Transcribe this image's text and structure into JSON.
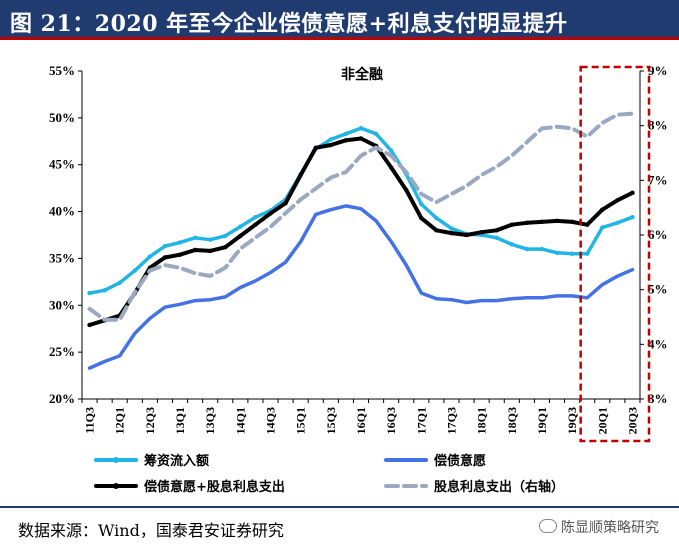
{
  "title": "图 21：2020 年至今企业偿债意愿+利息支付明显提升",
  "source": "数据来源：Wind，国泰君安证券研究",
  "watermark": "陈显顺策略研究",
  "colors": {
    "cyan": "#21b5e6",
    "blue": "#4472e6",
    "black": "#000000",
    "gray": "#9aa8c2",
    "box": "#c00000",
    "titlebar": "#1f3b6f"
  },
  "chart_data": {
    "type": "line",
    "title": "非全融",
    "categories": [
      "11Q3",
      "11Q4",
      "12Q1",
      "12Q2",
      "12Q3",
      "12Q4",
      "13Q1",
      "13Q2",
      "13Q3",
      "13Q4",
      "14Q1",
      "14Q2",
      "14Q3",
      "14Q4",
      "15Q1",
      "15Q2",
      "15Q3",
      "15Q4",
      "16Q1",
      "16Q2",
      "16Q3",
      "16Q4",
      "17Q1",
      "17Q2",
      "17Q3",
      "17Q4",
      "18Q1",
      "18Q2",
      "18Q3",
      "18Q4",
      "19Q1",
      "19Q2",
      "19Q3",
      "19Q4",
      "20Q1",
      "20Q2",
      "20Q3"
    ],
    "x_tick_labels": [
      "11Q3",
      "12Q1",
      "12Q3",
      "13Q1",
      "13Q3",
      "14Q1",
      "14Q3",
      "15Q1",
      "15Q3",
      "16Q1",
      "16Q3",
      "17Q1",
      "17Q3",
      "18Q1",
      "18Q3",
      "19Q1",
      "19Q3",
      "20Q1",
      "20Q3"
    ],
    "y_left": {
      "min": 20,
      "max": 55,
      "step": 5,
      "suffix": "%",
      "tick_labels": [
        "20%",
        "25%",
        "30%",
        "35%",
        "40%",
        "45%",
        "50%",
        "55%"
      ]
    },
    "y_right": {
      "min": 3,
      "max": 9,
      "step": 1,
      "suffix": "%",
      "tick_labels": [
        "3%",
        "4%",
        "5%",
        "6%",
        "7%",
        "8%",
        "9%"
      ]
    },
    "series": [
      {
        "name": "筹资流入额",
        "axis": "left",
        "color": "#21b5e6",
        "style": "solid-marker",
        "values": [
          31.3,
          31.6,
          32.4,
          33.7,
          35.2,
          36.3,
          36.7,
          37.2,
          37.0,
          37.4,
          38.4,
          39.4,
          40.1,
          41.3,
          44.0,
          46.7,
          47.7,
          48.3,
          48.9,
          48.3,
          46.5,
          44.0,
          40.8,
          39.3,
          38.2,
          37.6,
          37.5,
          37.2,
          36.5,
          36.0,
          36.0,
          35.6,
          35.5,
          35.5,
          38.3,
          38.8,
          39.4
        ]
      },
      {
        "name": "偿债意愿",
        "axis": "left",
        "color": "#4472e6",
        "style": "solid",
        "values": [
          23.3,
          24.0,
          24.6,
          27.0,
          28.6,
          29.8,
          30.1,
          30.5,
          30.6,
          30.9,
          31.9,
          32.6,
          33.5,
          34.6,
          36.8,
          39.7,
          40.2,
          40.6,
          40.3,
          39.0,
          36.8,
          34.3,
          31.3,
          30.7,
          30.6,
          30.3,
          30.5,
          30.5,
          30.7,
          30.8,
          30.8,
          31.0,
          31.0,
          30.8,
          32.2,
          33.1,
          33.8
        ]
      },
      {
        "name": "偿债意愿+股息利息支出",
        "axis": "left",
        "color": "#000000",
        "style": "solid-marker",
        "values": [
          27.9,
          28.4,
          28.9,
          31.3,
          34.0,
          35.1,
          35.4,
          35.9,
          35.8,
          36.2,
          37.4,
          38.6,
          39.8,
          40.9,
          43.9,
          46.8,
          47.1,
          47.6,
          47.8,
          47.0,
          44.7,
          42.3,
          39.3,
          38.0,
          37.7,
          37.5,
          37.8,
          38.0,
          38.6,
          38.8,
          38.9,
          39.0,
          38.9,
          38.6,
          40.2,
          41.2,
          42.0
        ]
      },
      {
        "name": "股息利息支出（右轴）",
        "axis": "right",
        "color": "#9aa8c2",
        "style": "dashed",
        "values": [
          4.65,
          4.45,
          4.45,
          4.95,
          5.35,
          5.45,
          5.4,
          5.3,
          5.25,
          5.4,
          5.75,
          5.95,
          6.15,
          6.4,
          6.65,
          6.85,
          7.05,
          7.15,
          7.45,
          7.6,
          7.45,
          7.15,
          6.75,
          6.6,
          6.75,
          6.9,
          7.1,
          7.25,
          7.45,
          7.7,
          7.95,
          7.98,
          7.95,
          7.8,
          8.05,
          8.2,
          8.22
        ]
      }
    ],
    "highlight": {
      "from": "19Q4",
      "to": "20Q3",
      "style": "dashed-box"
    }
  }
}
